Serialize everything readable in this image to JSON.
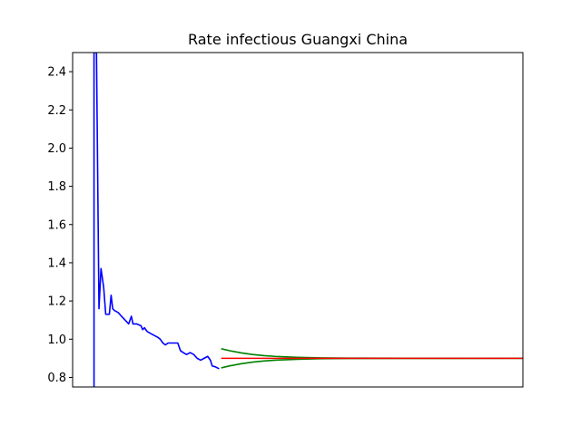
{
  "chart_data": {
    "type": "line",
    "title": "Rate infectious Guangxi China",
    "xlabel": "",
    "ylabel": "",
    "xlim": [
      0,
      200
    ],
    "ylim": [
      0.75,
      2.5
    ],
    "grid": false,
    "x_ticks_visible": false,
    "y_ticks": [
      0.8,
      1.0,
      1.2,
      1.4,
      1.6,
      1.8,
      2.0,
      2.2,
      2.4
    ],
    "y_tick_labels": [
      "0.8",
      "1.0",
      "1.2",
      "1.4",
      "1.6",
      "1.8",
      "2.0",
      "2.2",
      "2.4"
    ],
    "series": [
      {
        "color": "#0000ff",
        "role": "observed",
        "points": [
          [
            9.5,
            0.75
          ],
          [
            9.5,
            2.5
          ],
          [
            10.6,
            2.5
          ],
          [
            11.7,
            1.16
          ],
          [
            12.6,
            1.37
          ],
          [
            13.8,
            1.27
          ],
          [
            14.7,
            1.13
          ],
          [
            16.3,
            1.13
          ],
          [
            17.1,
            1.23
          ],
          [
            17.8,
            1.16
          ],
          [
            18.6,
            1.15
          ],
          [
            20.2,
            1.14
          ],
          [
            21.7,
            1.12
          ],
          [
            23.3,
            1.1
          ],
          [
            24.9,
            1.08
          ],
          [
            26.1,
            1.12
          ],
          [
            26.8,
            1.08
          ],
          [
            28.4,
            1.08
          ],
          [
            30.4,
            1.07
          ],
          [
            31.1,
            1.05
          ],
          [
            31.9,
            1.06
          ],
          [
            33.1,
            1.04
          ],
          [
            34.6,
            1.03
          ],
          [
            36.2,
            1.02
          ],
          [
            37.8,
            1.01
          ],
          [
            38.9,
            1.0
          ],
          [
            40.1,
            0.98
          ],
          [
            41.2,
            0.97
          ],
          [
            42.4,
            0.98
          ],
          [
            44.4,
            0.98
          ],
          [
            46.7,
            0.98
          ],
          [
            47.9,
            0.94
          ],
          [
            49.1,
            0.93
          ],
          [
            50.6,
            0.92
          ],
          [
            52.2,
            0.93
          ],
          [
            53.8,
            0.92
          ],
          [
            55.3,
            0.9
          ],
          [
            56.9,
            0.89
          ],
          [
            58.4,
            0.9
          ],
          [
            60.0,
            0.91
          ],
          [
            61.2,
            0.89
          ],
          [
            62.0,
            0.86
          ],
          [
            63.5,
            0.855
          ],
          [
            64.3,
            0.85
          ],
          [
            65.1,
            0.845
          ]
        ]
      },
      {
        "color": "#ff0000",
        "role": "forecast",
        "points": [
          [
            66.0,
            0.9
          ],
          [
            200.0,
            0.9
          ]
        ]
      },
      {
        "color": "#008000",
        "role": "upper-bound",
        "points": [
          [
            66.0,
            0.95
          ],
          [
            70.0,
            0.939
          ],
          [
            75.0,
            0.928
          ],
          [
            80.0,
            0.92
          ],
          [
            85.0,
            0.914
          ],
          [
            90.0,
            0.91
          ],
          [
            100.0,
            0.905
          ],
          [
            110.0,
            0.902
          ],
          [
            125.0,
            0.9007
          ],
          [
            150.0,
            0.9002
          ],
          [
            200.0,
            0.9
          ]
        ]
      },
      {
        "color": "#008000",
        "role": "lower-bound",
        "points": [
          [
            66.0,
            0.85
          ],
          [
            70.0,
            0.861
          ],
          [
            75.0,
            0.872
          ],
          [
            80.0,
            0.88
          ],
          [
            85.0,
            0.886
          ],
          [
            90.0,
            0.89
          ],
          [
            100.0,
            0.895
          ],
          [
            110.0,
            0.898
          ],
          [
            125.0,
            0.8993
          ],
          [
            150.0,
            0.8998
          ],
          [
            200.0,
            0.9
          ]
        ]
      }
    ]
  }
}
